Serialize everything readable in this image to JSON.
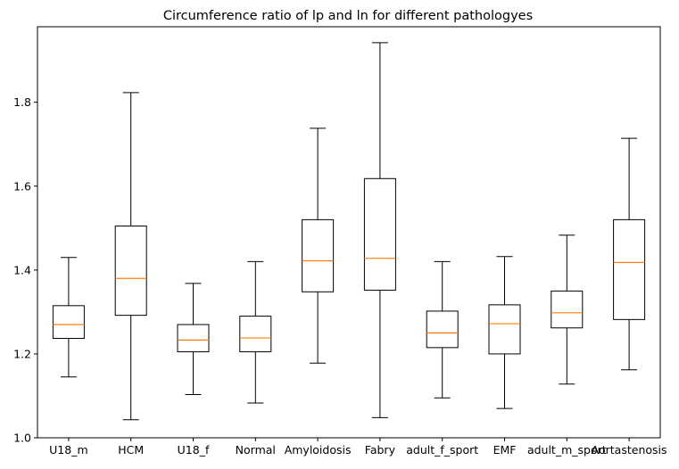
{
  "chart_data": {
    "type": "boxplot",
    "title": "Circumference ratio of lp and ln for different pathologyes",
    "xlabel": "",
    "ylabel": "",
    "ylim": [
      1.0,
      1.98
    ],
    "yticks": [
      1.0,
      1.2,
      1.4,
      1.6,
      1.8
    ],
    "ytick_labels": [
      "1.0",
      "1.2",
      "1.4",
      "1.6",
      "1.8"
    ],
    "categories": [
      "U18_m",
      "HCM",
      "U18_f",
      "Normal",
      "Amyloidosis",
      "Fabry",
      "adult_f_sport",
      "EMF",
      "adult_m_sport",
      "Aortastenosis"
    ],
    "boxes": [
      {
        "min": 1.145,
        "q1": 1.237,
        "median": 1.27,
        "q3": 1.315,
        "max": 1.43
      },
      {
        "min": 1.043,
        "q1": 1.292,
        "median": 1.38,
        "q3": 1.505,
        "max": 1.823
      },
      {
        "min": 1.103,
        "q1": 1.205,
        "median": 1.233,
        "q3": 1.27,
        "max": 1.368
      },
      {
        "min": 1.083,
        "q1": 1.205,
        "median": 1.238,
        "q3": 1.29,
        "max": 1.42
      },
      {
        "min": 1.178,
        "q1": 1.348,
        "median": 1.422,
        "q3": 1.52,
        "max": 1.738
      },
      {
        "min": 1.048,
        "q1": 1.352,
        "median": 1.428,
        "q3": 1.618,
        "max": 1.942
      },
      {
        "min": 1.095,
        "q1": 1.215,
        "median": 1.25,
        "q3": 1.302,
        "max": 1.42
      },
      {
        "min": 1.07,
        "q1": 1.2,
        "median": 1.272,
        "q3": 1.317,
        "max": 1.432
      },
      {
        "min": 1.128,
        "q1": 1.262,
        "median": 1.298,
        "q3": 1.35,
        "max": 1.483
      },
      {
        "min": 1.162,
        "q1": 1.282,
        "median": 1.418,
        "q3": 1.52,
        "max": 1.714
      }
    ],
    "colors": {
      "box": "#000000",
      "median": "#ff7f0e",
      "background": "#ffffff"
    },
    "grid": false
  }
}
